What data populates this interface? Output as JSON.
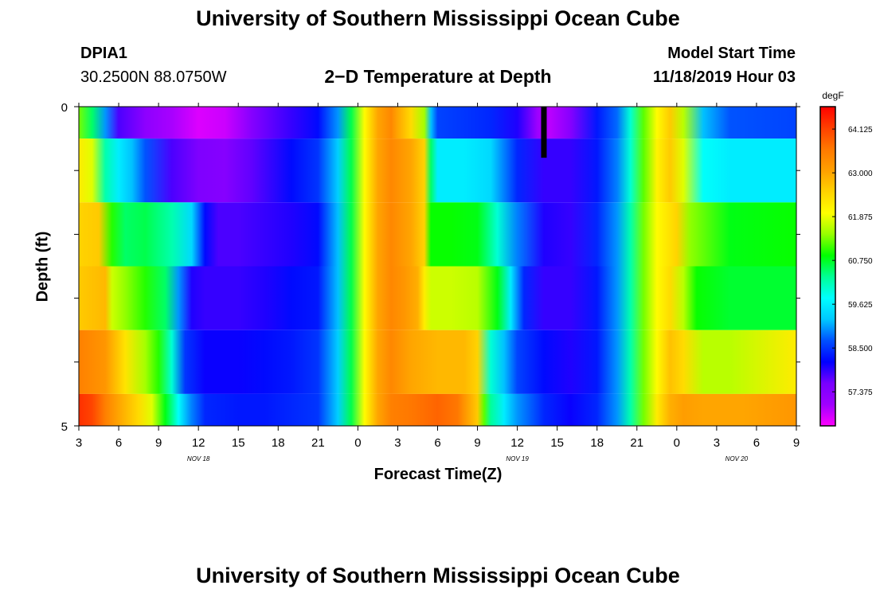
{
  "title_top": "University of Southern Mississippi Ocean Cube",
  "title_bottom": "University of Southern Mississippi Ocean Cube",
  "station": {
    "id": "DPIA1",
    "coords": "30.2500N 88.0750W"
  },
  "model_start": {
    "label": "Model Start Time",
    "value": "11/18/2019 Hour 03"
  },
  "chart_data": {
    "type": "heatmap",
    "title": "2−D Temperature at Depth",
    "xlabel": "Forecast Time(Z)",
    "ylabel": "Depth (ft)",
    "x_tick_labels": [
      "3",
      "6",
      "9",
      "12",
      "15",
      "18",
      "21",
      "0",
      "3",
      "6",
      "9",
      "12",
      "15",
      "18",
      "21",
      "0",
      "3",
      "6",
      "9"
    ],
    "x_range_hours": [
      0,
      54
    ],
    "y_tick_labels": [
      "0",
      "5"
    ],
    "ylim": [
      0,
      5
    ],
    "date_labels": [
      {
        "text": "NOV  18",
        "hour": 9
      },
      {
        "text": "NOV  19",
        "hour": 33
      },
      {
        "text": "NOV  20",
        "hour": 49.5
      }
    ],
    "colorbar": {
      "unit": "degF",
      "tick_labels": [
        "64.125",
        "63.000",
        "61.875",
        "60.750",
        "59.625",
        "58.500",
        "57.375"
      ],
      "range": [
        56.5,
        64.7
      ],
      "colors": [
        "#ff00ff",
        "#a000ff",
        "#7800ff",
        "#0000ff",
        "#0050ff",
        "#00c8ff",
        "#00ffff",
        "#00ff96",
        "#00ff00",
        "#96ff00",
        "#ffff00",
        "#ffd200",
        "#ffa000",
        "#ff7800",
        "#ff4000",
        "#ff0000"
      ]
    },
    "current_time_marker_hour": 35,
    "depth_layers": [
      {
        "depth_range": [
          0,
          0.5
        ],
        "hours": [
          0,
          1,
          2,
          3,
          5,
          7,
          9,
          11,
          13,
          16,
          18,
          19.5,
          20.5,
          21.5,
          22.5,
          23.5,
          24,
          25,
          26,
          26.5,
          27,
          29,
          31,
          33,
          34.5,
          35.5,
          37,
          39,
          40.5,
          41.5,
          42.5,
          43.5,
          44.5,
          45.5,
          47,
          49,
          54
        ],
        "values": [
          61.3,
          60.5,
          59.0,
          57.8,
          57.3,
          57.0,
          56.7,
          56.8,
          57.4,
          57.9,
          58.2,
          59.0,
          60.6,
          62.0,
          63.0,
          63.4,
          63.0,
          62.4,
          61.5,
          59.2,
          58.6,
          58.5,
          58.4,
          58.0,
          57.1,
          56.9,
          57.4,
          58.3,
          58.8,
          60.0,
          61.2,
          62.0,
          62.6,
          61.6,
          59.2,
          58.7,
          58.6
        ]
      },
      {
        "depth_range": [
          0.5,
          1.5
        ],
        "hours": [
          0,
          1,
          2,
          3,
          4,
          5,
          7,
          9,
          11,
          13,
          16,
          18,
          19.5,
          20.5,
          21.5,
          22.5,
          23.5,
          25,
          26,
          26.5,
          27,
          29,
          31,
          33,
          35,
          37,
          39,
          40.5,
          41.5,
          42.5,
          43.5,
          44.5,
          45.5,
          47,
          49,
          54
        ],
        "values": [
          62.2,
          61.8,
          60.2,
          59.6,
          59.2,
          58.7,
          57.8,
          57.5,
          57.4,
          57.7,
          58.2,
          58.5,
          59.3,
          60.6,
          62.0,
          63.0,
          63.4,
          63.0,
          62.5,
          60.5,
          59.6,
          59.6,
          59.4,
          58.4,
          57.9,
          57.9,
          58.3,
          58.9,
          60.0,
          61.2,
          62.1,
          62.6,
          61.8,
          59.8,
          59.6,
          59.6
        ]
      },
      {
        "depth_range": [
          1.5,
          2.5
        ],
        "hours": [
          0,
          1.5,
          2.5,
          3.5,
          5,
          7,
          8.5,
          9.5,
          10.5,
          12,
          14,
          16,
          18,
          19.5,
          20.5,
          21.5,
          22.5,
          23.5,
          25,
          26,
          26.5,
          28,
          30,
          31.5,
          33,
          35,
          37,
          39,
          40.5,
          41.5,
          42.5,
          43.5,
          45,
          46,
          49,
          54
        ],
        "values": [
          62.5,
          62.6,
          61.0,
          60.5,
          60.6,
          60.2,
          59.4,
          58.2,
          57.8,
          57.8,
          57.9,
          58.0,
          58.2,
          59.2,
          60.6,
          62.0,
          63.0,
          63.4,
          63.0,
          62.5,
          60.9,
          60.9,
          60.8,
          60.0,
          58.9,
          58.0,
          57.9,
          58.4,
          59.0,
          60.2,
          61.3,
          62.0,
          62.5,
          61.4,
          60.8,
          60.9
        ]
      },
      {
        "depth_range": [
          2.5,
          3.5
        ],
        "hours": [
          0,
          2,
          2.5,
          3.5,
          5,
          6.5,
          7.5,
          8.5,
          9.5,
          12,
          14,
          16,
          18,
          19.5,
          20.5,
          21.5,
          22.5,
          23.5,
          24.5,
          25.5,
          26,
          26.5,
          28,
          30,
          31.5,
          32.5,
          33.5,
          35,
          37,
          39,
          40.5,
          41.5,
          42.5,
          43.5,
          44.5,
          45.5,
          46.5,
          49,
          54
        ],
        "values": [
          62.6,
          62.8,
          61.7,
          61.4,
          61.0,
          60.5,
          59.0,
          58.0,
          57.9,
          57.9,
          58.0,
          58.2,
          58.3,
          59.2,
          60.6,
          62.0,
          63.0,
          63.4,
          63.2,
          62.9,
          62.2,
          61.7,
          61.7,
          61.6,
          60.8,
          59.6,
          58.4,
          57.9,
          57.9,
          58.3,
          59.0,
          60.2,
          61.3,
          62.0,
          62.4,
          61.6,
          60.9,
          60.7,
          60.7
        ]
      },
      {
        "depth_range": [
          3.5,
          4.5
        ],
        "hours": [
          0,
          2,
          3.5,
          5,
          6,
          7,
          8,
          9.5,
          12,
          14,
          16,
          18,
          19.5,
          20.5,
          21.5,
          22.5,
          23.5,
          25,
          27,
          29,
          30,
          31,
          32,
          33,
          35,
          37,
          39,
          40.5,
          41.5,
          42.5,
          43.5,
          44.5,
          45.5,
          47,
          49,
          54
        ],
        "values": [
          63.5,
          63.2,
          62.3,
          61.5,
          61.0,
          60.0,
          58.5,
          58.1,
          58.1,
          58.2,
          58.3,
          58.5,
          59.3,
          60.6,
          62.0,
          63.0,
          63.4,
          63.0,
          62.8,
          62.8,
          62.5,
          60.0,
          59.2,
          58.6,
          58.2,
          58.0,
          58.3,
          59.0,
          60.2,
          61.3,
          62.0,
          62.7,
          62.4,
          61.6,
          61.6,
          62.2
        ]
      },
      {
        "depth_range": [
          4.5,
          5.0
        ],
        "hours": [
          0,
          1,
          2,
          3,
          4.5,
          5.5,
          6.5,
          7.5,
          8.5,
          9.5,
          12,
          14,
          16,
          18,
          19.5,
          20.5,
          21.5,
          22.5,
          23.5,
          25,
          27,
          28.5,
          30,
          30.5,
          31,
          32,
          33,
          35,
          37,
          39,
          40.5,
          41.5,
          42.5,
          43.5,
          44.5,
          45.5,
          47,
          50,
          54
        ],
        "values": [
          64.3,
          64.1,
          63.5,
          63.0,
          62.4,
          61.8,
          60.8,
          59.8,
          58.9,
          58.4,
          58.3,
          58.3,
          58.4,
          58.5,
          59.3,
          60.6,
          62.0,
          63.0,
          63.5,
          63.6,
          63.8,
          63.6,
          62.6,
          61.2,
          60.3,
          59.6,
          59.0,
          58.4,
          58.1,
          58.4,
          59.0,
          60.2,
          61.3,
          62.2,
          62.9,
          63.1,
          63.0,
          63.0,
          63.2
        ]
      }
    ]
  }
}
